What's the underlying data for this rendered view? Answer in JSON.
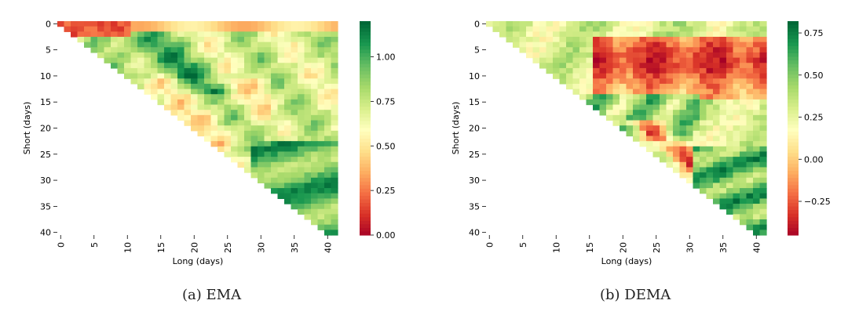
{
  "chart_data": [
    {
      "type": "heatmap",
      "caption": "(a) EMA",
      "xlabel": "Long (days)",
      "ylabel": "Short (days)",
      "x_ticks": [
        0,
        5,
        10,
        15,
        20,
        25,
        30,
        35,
        40
      ],
      "y_ticks": [
        0,
        5,
        10,
        15,
        20,
        25,
        30,
        35,
        40
      ],
      "x_range": [
        0,
        41
      ],
      "y_range": [
        0,
        40
      ],
      "mask": "cells with short > long are empty (lower-left triangle)",
      "colormap": "RdYlGn",
      "colorbar": {
        "min": 0.0,
        "max": 1.2,
        "ticks": [
          0.0,
          0.25,
          0.5,
          0.75,
          1.0
        ],
        "tick_labels": [
          "0.00",
          "0.25",
          "0.50",
          "0.75",
          "1.00"
        ]
      },
      "value_regions": [
        {
          "description": "short 0-5, long 0-10",
          "approx_value": 0.2
        },
        {
          "description": "short 0-2, long 10-40",
          "approx_value": 0.5
        },
        {
          "description": "short 3-12, long 8-20",
          "approx_value": 1.0
        },
        {
          "description": "short 5-20, long 20-40",
          "approx_value": 0.8
        },
        {
          "description": "short 10-22, long 12-30",
          "approx_value": 0.7
        },
        {
          "description": "short 20-38, long 30-40",
          "approx_value": 1.1
        }
      ]
    },
    {
      "type": "heatmap",
      "caption": "(b) DEMA",
      "xlabel": "Long (days)",
      "ylabel": "Short (days)",
      "x_ticks": [
        0,
        5,
        10,
        15,
        20,
        25,
        30,
        35,
        40
      ],
      "y_ticks": [
        0,
        5,
        10,
        15,
        20,
        25,
        30,
        35,
        40
      ],
      "x_range": [
        0,
        41
      ],
      "y_range": [
        0,
        40
      ],
      "mask": "cells with short > long are empty (lower-left triangle)",
      "colormap": "RdYlGn",
      "colorbar": {
        "min": -0.45,
        "max": 0.82,
        "ticks": [
          -0.25,
          0.0,
          0.25,
          0.5,
          0.75
        ],
        "tick_labels": [
          "−0.25",
          "0.00",
          "0.25",
          "0.50",
          "0.75"
        ]
      },
      "value_regions": [
        {
          "description": "short 0-5, long 0-20",
          "approx_value": 0.3
        },
        {
          "description": "short 3-14, long 15-40",
          "approx_value": -0.2
        },
        {
          "description": "short 14-22, long 15-30",
          "approx_value": 0.5
        },
        {
          "description": "short 20-28, long 26-35",
          "approx_value": -0.3
        },
        {
          "description": "short 22-40, long 30-41",
          "approx_value": 0.7
        }
      ]
    }
  ]
}
